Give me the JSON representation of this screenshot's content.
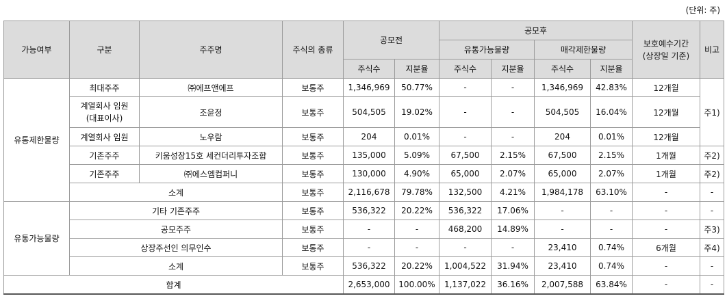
{
  "unit": "(단위: 주)",
  "header": {
    "category": "가능여부",
    "division": "구분",
    "holder": "주주명",
    "stock_type": "주식의 종류",
    "pre": "공모전",
    "post": "공모후",
    "tradable": "유통가능물량",
    "restricted": "매각제한물량",
    "lockup_1": "보호예수기간",
    "lockup_2": "(상장일 기준)",
    "remarks": "비고",
    "shares": "주식수",
    "ratio": "지분율"
  },
  "groups": {
    "restricted": "유통제한물량",
    "tradable": "유통가능물량"
  },
  "rows": [
    {
      "division": "최대주주",
      "holder": "㈜에프앤에프",
      "type": "보통주",
      "pre_shares": "1,346,969",
      "pre_ratio": "50.77%",
      "t_shares": "-",
      "t_ratio": "-",
      "r_shares": "1,346,969",
      "r_ratio": "42.83%",
      "lockup": "12개월"
    },
    {
      "division_1": "계열회사 임원",
      "division_2": "(대표이사)",
      "holder": "조윤정",
      "type": "보통주",
      "pre_shares": "504,505",
      "pre_ratio": "19.02%",
      "t_shares": "-",
      "t_ratio": "-",
      "r_shares": "504,505",
      "r_ratio": "16.04%",
      "lockup": "12개월"
    },
    {
      "division": "계열회사 임원",
      "holder": "노우람",
      "type": "보통주",
      "pre_shares": "204",
      "pre_ratio": "0.01%",
      "t_shares": "-",
      "t_ratio": "-",
      "r_shares": "204",
      "r_ratio": "0.01%",
      "lockup": "12개월"
    },
    {
      "division": "기존주주",
      "holder": "키움성장15호 세컨더리투자조합",
      "type": "보통주",
      "pre_shares": "135,000",
      "pre_ratio": "5.09%",
      "t_shares": "67,500",
      "t_ratio": "2.15%",
      "r_shares": "67,500",
      "r_ratio": "2.15%",
      "lockup": "1개월",
      "remark": "주2)"
    },
    {
      "division": "기존주주",
      "holder": "㈜에스엠컴퍼니",
      "type": "보통주",
      "pre_shares": "130,000",
      "pre_ratio": "4.90%",
      "t_shares": "65,000",
      "t_ratio": "2.07%",
      "r_shares": "65,000",
      "r_ratio": "2.07%",
      "lockup": "1개월",
      "remark": "주2)"
    },
    {
      "label": "소계",
      "type": "보통주",
      "pre_shares": "2,116,678",
      "pre_ratio": "79.78%",
      "t_shares": "132,500",
      "t_ratio": "4.21%",
      "r_shares": "1,984,178",
      "r_ratio": "63.10%",
      "lockup": "-",
      "remark": "-"
    },
    {
      "label": "기타 기존주주",
      "type": "보통주",
      "pre_shares": "536,322",
      "pre_ratio": "20.22%",
      "t_shares": "536,322",
      "t_ratio": "17.06%",
      "r_shares": "-",
      "r_ratio": "-",
      "lockup": "-",
      "remark": "-"
    },
    {
      "label": "공모주주",
      "type": "보통주",
      "pre_shares": "-",
      "pre_ratio": "-",
      "t_shares": "468,200",
      "t_ratio": "14.89%",
      "r_shares": "-",
      "r_ratio": "-",
      "lockup": "-",
      "remark": "주3)"
    },
    {
      "label": "상장주선인 의무인수",
      "type": "보통주",
      "pre_shares": "-",
      "pre_ratio": "-",
      "t_shares": "-",
      "t_ratio": "-",
      "r_shares": "23,410",
      "r_ratio": "0.74%",
      "lockup": "6개월",
      "remark": "주4)"
    },
    {
      "label": "소계",
      "type": "보통주",
      "pre_shares": "536,322",
      "pre_ratio": "20.22%",
      "t_shares": "1,004,522",
      "t_ratio": "31.94%",
      "r_shares": "23,410",
      "r_ratio": "0.74%",
      "lockup": "-",
      "remark": "-"
    },
    {
      "label": "합계",
      "pre_shares": "2,653,000",
      "pre_ratio": "100.00%",
      "t_shares": "1,137,022",
      "t_ratio": "36.16%",
      "r_shares": "2,007,588",
      "r_ratio": "63.84%",
      "lockup": "-",
      "remark": "-"
    }
  ],
  "remark_main": "주1)"
}
